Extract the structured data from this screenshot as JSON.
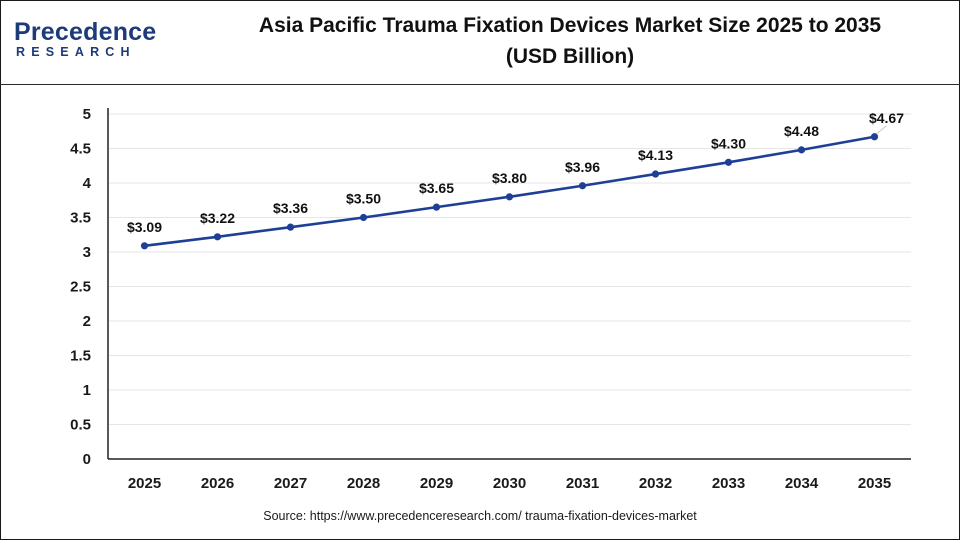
{
  "brand": {
    "name_main": "Precedence",
    "name_sub": "RESEARCH"
  },
  "title_line1": "Asia Pacific Trauma Fixation Devices Market Size 2025 to 2035",
  "title_line2": "(USD Billion)",
  "source": "Source: https://www.precedenceresearch.com/ trauma-fixation-devices-market",
  "colors": {
    "line": "#1f3f96",
    "grid": "#e6e6e6",
    "axis": "#222222"
  },
  "chart_data": {
    "type": "line",
    "title": "Asia Pacific Trauma Fixation Devices Market Size 2025 to 2035 (USD Billion)",
    "xlabel": "",
    "ylabel": "",
    "categories": [
      "2025",
      "2026",
      "2027",
      "2028",
      "2029",
      "2030",
      "2031",
      "2032",
      "2033",
      "2034",
      "2035"
    ],
    "values": [
      3.09,
      3.22,
      3.36,
      3.5,
      3.65,
      3.8,
      3.96,
      4.13,
      4.3,
      4.48,
      4.67
    ],
    "data_labels": [
      "$3.09",
      "$3.22",
      "$3.36",
      "$3.50",
      "$3.65",
      "$3.80",
      "$3.96",
      "$4.13",
      "$4.30",
      "$4.48",
      "$4.67"
    ],
    "ylim": [
      0,
      5
    ],
    "yticks": [
      "0",
      "0.5",
      "1",
      "1.5",
      "2",
      "2.5",
      "3",
      "3.5",
      "4",
      "4.5",
      "5"
    ],
    "grid": true,
    "legend": "none"
  }
}
